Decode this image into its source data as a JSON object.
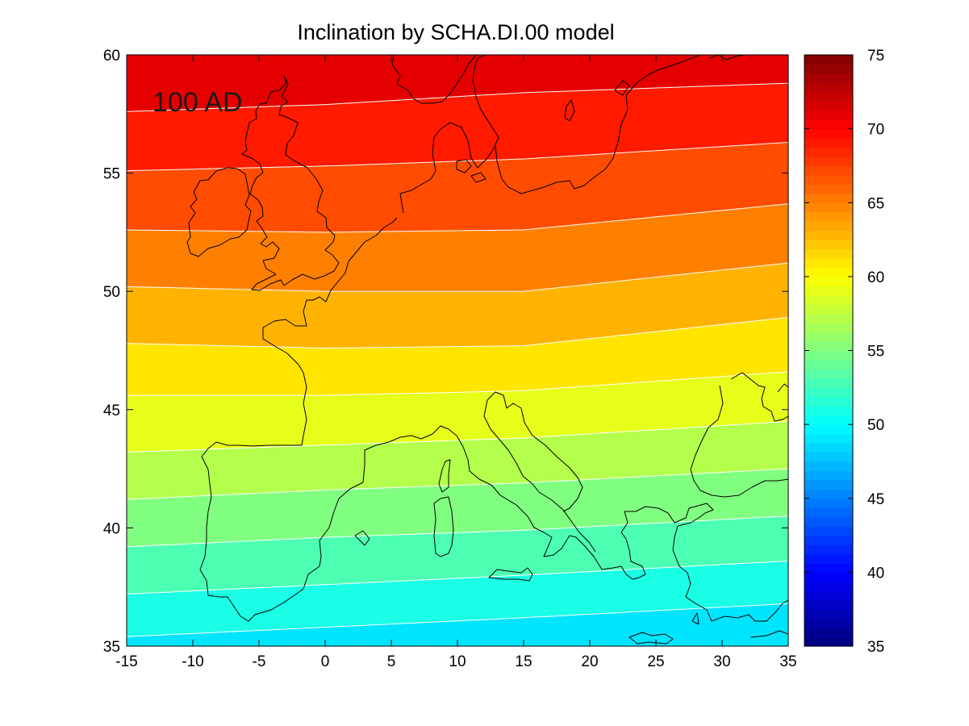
{
  "chart_data": {
    "type": "heatmap",
    "subtype": "filled-contour-map",
    "title": "Inclination by SCHA.DI.00 model",
    "annotation": "100 AD",
    "xlim": [
      -15,
      35
    ],
    "ylim": [
      35,
      60
    ],
    "x_ticks": [
      -15,
      -10,
      -5,
      0,
      5,
      10,
      15,
      20,
      25,
      30,
      35
    ],
    "y_ticks": [
      35,
      40,
      45,
      50,
      55,
      60
    ],
    "xlabel": "",
    "ylabel": "",
    "grid": false,
    "colormap": "jet",
    "colorbar": {
      "range": [
        35,
        75
      ],
      "ticks": [
        35,
        40,
        45,
        50,
        55,
        60,
        65,
        70,
        75
      ],
      "position": "right"
    },
    "contour_levels": [
      50,
      52,
      54,
      56,
      58,
      60,
      62,
      64,
      66,
      68,
      70,
      72
    ],
    "contour_line_color": "#ffffff",
    "coastline_color": "#000000",
    "contours": [
      {
        "level": 50,
        "points": [
          [
            -15,
            35.4
          ],
          [
            0,
            35.8
          ],
          [
            15,
            36.2
          ],
          [
            35,
            36.8
          ]
        ]
      },
      {
        "level": 52,
        "points": [
          [
            -15,
            37.2
          ],
          [
            0,
            37.6
          ],
          [
            15,
            38.0
          ],
          [
            35,
            38.6
          ]
        ]
      },
      {
        "level": 54,
        "points": [
          [
            -15,
            39.2
          ],
          [
            0,
            39.6
          ],
          [
            15,
            39.9
          ],
          [
            35,
            40.5
          ]
        ]
      },
      {
        "level": 56,
        "points": [
          [
            -15,
            41.2
          ],
          [
            0,
            41.6
          ],
          [
            15,
            41.9
          ],
          [
            35,
            42.5
          ]
        ]
      },
      {
        "level": 58,
        "points": [
          [
            -15,
            43.2
          ],
          [
            0,
            43.5
          ],
          [
            15,
            43.8
          ],
          [
            35,
            44.5
          ]
        ]
      },
      {
        "level": 60,
        "points": [
          [
            -15,
            45.6
          ],
          [
            0,
            45.6
          ],
          [
            15,
            45.8
          ],
          [
            35,
            46.6
          ]
        ]
      },
      {
        "level": 62,
        "points": [
          [
            -15,
            47.8
          ],
          [
            0,
            47.6
          ],
          [
            15,
            47.7
          ],
          [
            35,
            48.9
          ]
        ]
      },
      {
        "level": 64,
        "points": [
          [
            -15,
            50.2
          ],
          [
            0,
            50.0
          ],
          [
            15,
            50.0
          ],
          [
            35,
            51.2
          ]
        ]
      },
      {
        "level": 66,
        "points": [
          [
            -15,
            52.6
          ],
          [
            0,
            52.5
          ],
          [
            15,
            52.6
          ],
          [
            35,
            53.7
          ]
        ]
      },
      {
        "level": 68,
        "points": [
          [
            -15,
            55.1
          ],
          [
            0,
            55.3
          ],
          [
            15,
            55.6
          ],
          [
            35,
            56.3
          ]
        ]
      },
      {
        "level": 70,
        "points": [
          [
            -15,
            57.6
          ],
          [
            0,
            57.9
          ],
          [
            15,
            58.4
          ],
          [
            35,
            58.8
          ]
        ]
      },
      {
        "level": 72,
        "points": [
          [
            -15,
            60.0
          ],
          [
            35,
            60.0
          ]
        ]
      }
    ]
  }
}
